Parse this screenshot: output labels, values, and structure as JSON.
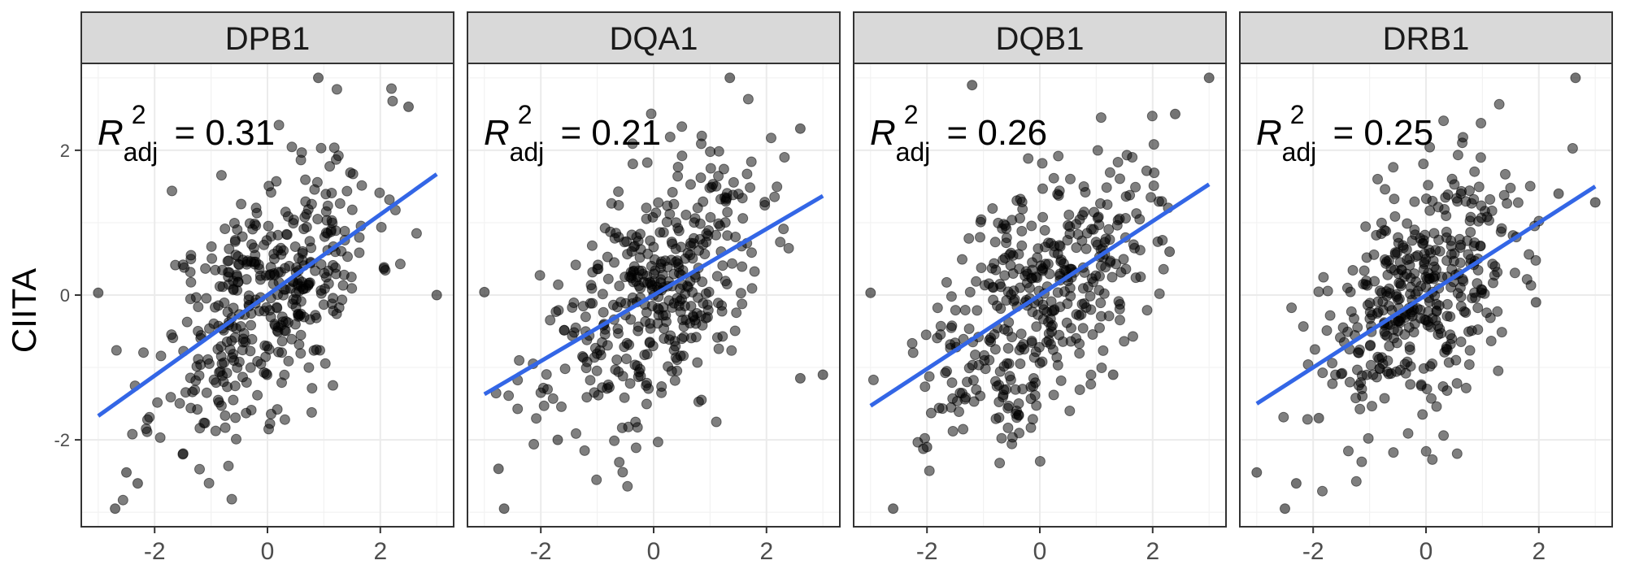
{
  "chart_data": {
    "type": "scatter",
    "ylabel": "CIITA",
    "xlabel": "",
    "xlim": [
      -3.3,
      3.3
    ],
    "ylim": [
      -3.2,
      3.2
    ],
    "x_ticks": [
      -2,
      0,
      2
    ],
    "y_ticks": [
      -2,
      0,
      2
    ],
    "grid": true,
    "point_color": "#000000",
    "line_color": "#3366e6",
    "strip_fill": "#d9d9d9",
    "panels": [
      {
        "label": "DPB1",
        "r2_symbol": "R",
        "r2_sup": "2",
        "r2_sub": "adj",
        "r2_value": "= 0.31",
        "fit": {
          "x": [
            -3.0,
            3.0
          ],
          "y": [
            -1.67,
            1.67
          ]
        },
        "seed": 11
      },
      {
        "label": "DQA1",
        "r2_symbol": "R",
        "r2_sup": "2",
        "r2_sub": "adj",
        "r2_value": "= 0.21",
        "fit": {
          "x": [
            -3.0,
            3.0
          ],
          "y": [
            -1.37,
            1.37
          ]
        },
        "seed": 23
      },
      {
        "label": "DQB1",
        "r2_symbol": "R",
        "r2_sup": "2",
        "r2_sub": "adj",
        "r2_value": "= 0.26",
        "fit": {
          "x": [
            -3.0,
            3.0
          ],
          "y": [
            -1.53,
            1.53
          ]
        },
        "seed": 37
      },
      {
        "label": "DRB1",
        "r2_symbol": "R",
        "r2_sup": "2",
        "r2_sub": "adj",
        "r2_value": "= 0.25",
        "fit": {
          "x": [
            -3.0,
            3.0
          ],
          "y": [
            -1.5,
            1.5
          ]
        },
        "seed": 53
      }
    ],
    "n_points_per_panel": 400,
    "highlight_points": [
      [
        [
          -3.0,
          0.03
        ],
        [
          3.0,
          0.0
        ],
        [
          0.9,
          3.0
        ],
        [
          -2.7,
          -2.95
        ],
        [
          -2.5,
          -2.45
        ],
        [
          -2.3,
          -2.6
        ],
        [
          2.5,
          2.6
        ],
        [
          -1.5,
          -2.2
        ]
      ],
      [
        [
          -3.0,
          0.04
        ],
        [
          3.0,
          -1.1
        ],
        [
          1.35,
          3.0
        ],
        [
          -2.65,
          -2.95
        ],
        [
          -2.75,
          -2.4
        ],
        [
          2.6,
          2.3
        ],
        [
          -1.7,
          -2.0
        ],
        [
          2.6,
          -1.15
        ]
      ],
      [
        [
          -3.0,
          0.03
        ],
        [
          3.0,
          3.0
        ],
        [
          -2.6,
          -2.95
        ],
        [
          -1.2,
          2.9
        ],
        [
          2.4,
          2.5
        ],
        [
          2.3,
          0.6
        ],
        [
          -2.0,
          -2.1
        ],
        [
          1.3,
          -1.1
        ]
      ],
      [
        [
          -3.0,
          -2.45
        ],
        [
          3.0,
          1.28
        ],
        [
          2.65,
          3.0
        ],
        [
          -2.5,
          -2.95
        ],
        [
          -2.3,
          -2.6
        ],
        [
          2.35,
          1.4
        ],
        [
          -1.9,
          -1.7
        ],
        [
          1.95,
          -0.1
        ]
      ]
    ]
  }
}
